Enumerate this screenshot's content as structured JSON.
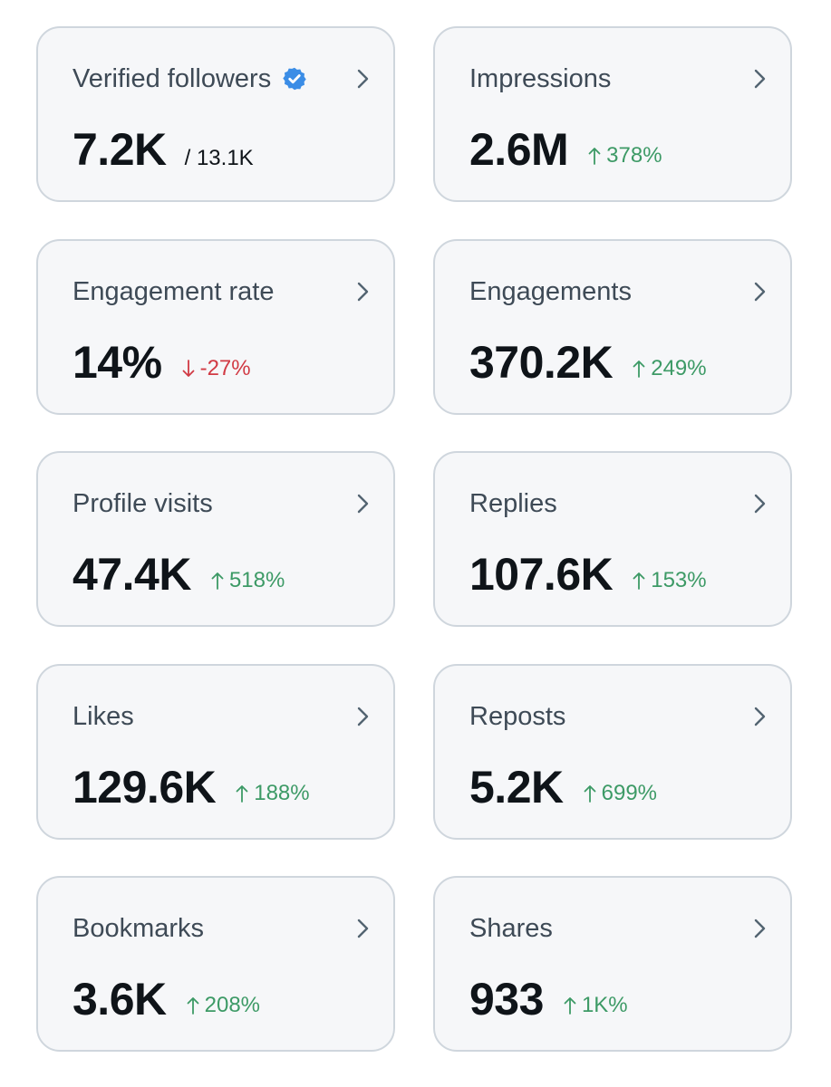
{
  "accent_colors": {
    "positive": "#3d9a66",
    "negative": "#d13a44",
    "verified": "#3b8de6"
  },
  "cards": [
    {
      "id": "verified-followers",
      "title": "Verified followers",
      "value": "7.2K",
      "total": "/ 13.1K",
      "verified_icon": "verified-badge-icon"
    },
    {
      "id": "impressions",
      "title": "Impressions",
      "value": "2.6M",
      "change": "378%",
      "direction": "up"
    },
    {
      "id": "engagement-rate",
      "title": "Engagement rate",
      "value": "14%",
      "change": "-27%",
      "direction": "down"
    },
    {
      "id": "engagements",
      "title": "Engagements",
      "value": "370.2K",
      "change": "249%",
      "direction": "up"
    },
    {
      "id": "profile-visits",
      "title": "Profile visits",
      "value": "47.4K",
      "change": "518%",
      "direction": "up"
    },
    {
      "id": "replies",
      "title": "Replies",
      "value": "107.6K",
      "change": "153%",
      "direction": "up"
    },
    {
      "id": "likes",
      "title": "Likes",
      "value": "129.6K",
      "change": "188%",
      "direction": "up"
    },
    {
      "id": "reposts",
      "title": "Reposts",
      "value": "5.2K",
      "change": "699%",
      "direction": "up"
    },
    {
      "id": "bookmarks",
      "title": "Bookmarks",
      "value": "3.6K",
      "change": "208%",
      "direction": "up"
    },
    {
      "id": "shares",
      "title": "Shares",
      "value": "933",
      "change": "1K%",
      "direction": "up"
    }
  ]
}
